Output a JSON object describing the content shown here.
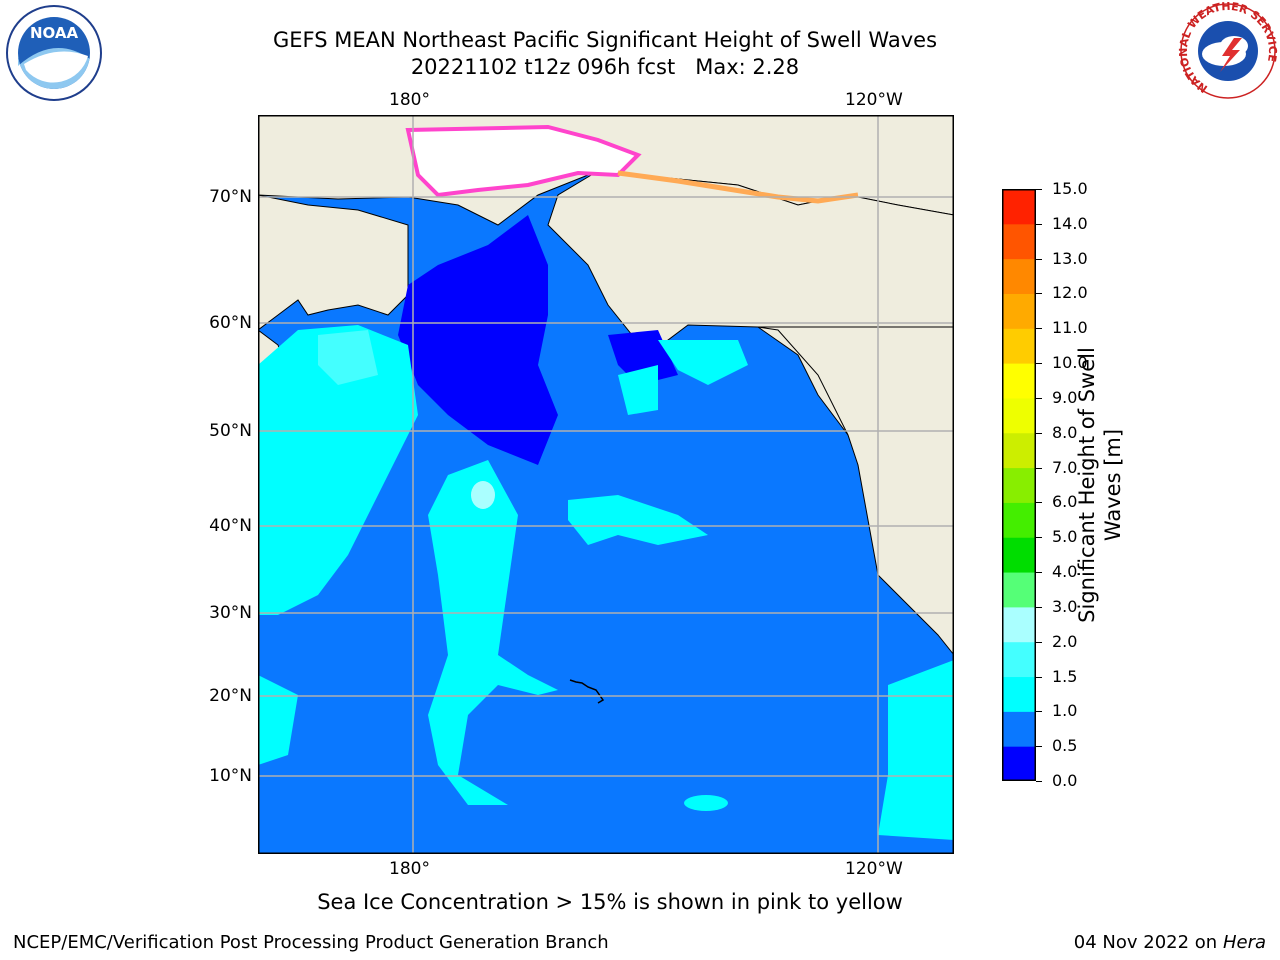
{
  "header": {
    "title_line1": "GEFS MEAN Northeast Pacific Significant Height of Swell Waves",
    "title_line2": "20221102 t12z 096h fcst   Max: 2.28"
  },
  "logos": {
    "left": "NOAA",
    "right_ring": "NATIONAL WEATHER SERVICE"
  },
  "map": {
    "lon_labels_top": [
      "180°",
      "120°W"
    ],
    "lon_labels_bottom": [
      "180°",
      "120°W"
    ],
    "lat_labels": [
      "70°N",
      "60°N",
      "50°N",
      "40°N",
      "30°N",
      "20°N",
      "10°N"
    ],
    "colors": {
      "land": "#efedde",
      "ocean_mid": "#0a78ff",
      "ocean_low": "#0000ff",
      "ocean_high": "#00ffff",
      "ocean_higher": "#44ffff",
      "ice": "#ff44cc"
    }
  },
  "colorbar": {
    "title_line1": "Significant Height of Swell",
    "title_line2": "Waves [m]",
    "ticks": [
      "15.0",
      "14.0",
      "13.0",
      "12.0",
      "11.0",
      "10.0",
      "9.0",
      "8.0",
      "7.0",
      "6.0",
      "5.0",
      "4.0",
      "3.0",
      "2.0",
      "1.5",
      "1.0",
      "0.5",
      "0.0"
    ],
    "colors": [
      "#0000ff",
      "#0a78ff",
      "#00ffff",
      "#44ffff",
      "#aaffff",
      "#55ff77",
      "#00dd00",
      "#44ee00",
      "#88ee00",
      "#ccee00",
      "#eeff00",
      "#ffff00",
      "#ffcc00",
      "#ffaa00",
      "#ff8800",
      "#ff5500",
      "#ff2200"
    ]
  },
  "footer": {
    "note": "Sea Ice Concentration > 15% is shown in pink to yellow",
    "left": "NCEP/EMC/Verification Post Processing Product Generation Branch",
    "right_prefix": "04 Nov 2022 on",
    "right_machine": "Hera"
  }
}
